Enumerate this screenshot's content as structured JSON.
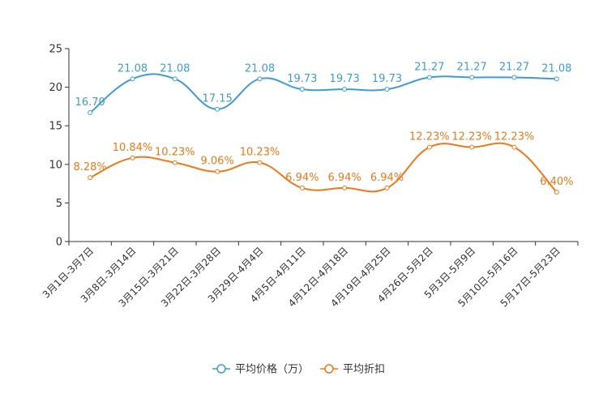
{
  "chart_data": {
    "type": "line",
    "title": "",
    "categories": [
      "3月1日-3月7日",
      "3月8日-3月14日",
      "3月15日-3月21日",
      "3月22日-3月28日",
      "3月29日-4月4日",
      "4月5日-4月11日",
      "4月12日-4月18日",
      "4月19日-4月25日",
      "4月26日-5月2日",
      "5月3日-5月9日",
      "5月10日-5月16日",
      "5月17日-5月23日"
    ],
    "ylim": [
      0,
      25
    ],
    "yticks": [
      0,
      5,
      10,
      15,
      20,
      25
    ],
    "series": [
      {
        "name": "平均价格（万）",
        "color": "#3d9dd3",
        "values": [
          16.7,
          21.08,
          21.08,
          17.15,
          21.08,
          19.73,
          19.73,
          19.73,
          21.27,
          21.27,
          21.27,
          21.08
        ],
        "labels": [
          "16.70",
          "21.08",
          "21.08",
          "17.15",
          "21.08",
          "19.73",
          "19.73",
          "19.73",
          "21.27",
          "21.27",
          "21.27",
          "21.08"
        ]
      },
      {
        "name": "平均折扣",
        "color": "#f07818",
        "values": [
          8.28,
          10.84,
          10.23,
          9.06,
          10.23,
          6.94,
          6.94,
          6.94,
          12.23,
          12.23,
          12.23,
          6.4
        ],
        "labels": [
          "8.28%",
          "10.84%",
          "10.23%",
          "9.06%",
          "10.23%",
          "6.94%",
          "6.94%",
          "6.94%",
          "12.23%",
          "12.23%",
          "12.23%",
          "6.40%"
        ]
      }
    ],
    "legend": "bottom-center"
  }
}
